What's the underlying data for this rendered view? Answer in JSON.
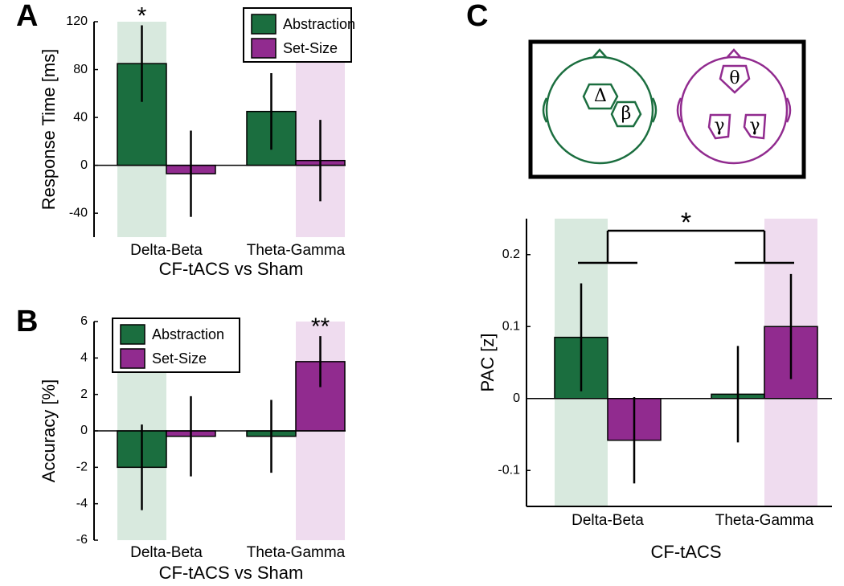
{
  "chart_data": [
    {
      "type": "bar",
      "panel": "A",
      "ylabel": "Response Time [ms]",
      "xlabel": "CF-tACS vs Sham",
      "categories": [
        "Delta-Beta",
        "Theta-Gamma"
      ],
      "series": [
        {
          "name": "Abstraction",
          "color": "#1b6e3f",
          "values": [
            85,
            45
          ],
          "errors": [
            32,
            32
          ]
        },
        {
          "name": "Set-Size",
          "color": "#912b8f",
          "values": [
            -7,
            4
          ],
          "errors": [
            36,
            34
          ]
        }
      ],
      "ylim": [
        -60,
        120
      ],
      "yticks": [
        -40,
        0,
        40,
        80,
        120
      ],
      "legend": "upper right",
      "bands": [
        {
          "series": 0,
          "category": 0,
          "color": "#d8e9de"
        },
        {
          "series": 1,
          "category": 1,
          "color": "#efdcef"
        }
      ],
      "annotations": [
        {
          "text": "*",
          "series": 0,
          "category": 0
        }
      ]
    },
    {
      "type": "bar",
      "panel": "B",
      "ylabel": "Accuracy [%]",
      "xlabel": "CF-tACS vs Sham",
      "categories": [
        "Delta-Beta",
        "Theta-Gamma"
      ],
      "series": [
        {
          "name": "Abstraction",
          "color": "#1b6e3f",
          "values": [
            -2.0,
            -0.3
          ],
          "errors": [
            2.35,
            2.0
          ]
        },
        {
          "name": "Set-Size",
          "color": "#912b8f",
          "values": [
            -0.3,
            3.8
          ],
          "errors": [
            2.2,
            1.4
          ]
        }
      ],
      "ylim": [
        -6,
        6
      ],
      "yticks": [
        -6,
        -4,
        -2,
        0,
        2,
        4,
        6
      ],
      "legend": "upper left",
      "bands": [
        {
          "series": 0,
          "category": 0,
          "color": "#d8e9de"
        },
        {
          "series": 1,
          "category": 1,
          "color": "#efdcef"
        }
      ],
      "annotations": [
        {
          "text": "**",
          "series": 1,
          "category": 1
        }
      ]
    },
    {
      "type": "bar",
      "panel": "C",
      "ylabel": "PAC [z]",
      "xlabel": "CF-tACS",
      "categories": [
        "Delta-Beta",
        "Theta-Gamma"
      ],
      "series": [
        {
          "color": "#1b6e3f",
          "values": [
            0.085,
            0.006
          ],
          "errors": [
            0.075,
            0.067
          ]
        },
        {
          "color": "#912b8f",
          "values": [
            -0.058,
            0.1
          ],
          "errors": [
            0.06,
            0.073
          ]
        }
      ],
      "ylim": [
        -0.15,
        0.25
      ],
      "yticks": [
        -0.1,
        0,
        0.1,
        0.2
      ],
      "bands": [
        {
          "series": 0,
          "category": 0,
          "color": "#d8e9de"
        },
        {
          "series": 1,
          "category": 1,
          "color": "#efdcef"
        }
      ],
      "bracket": {
        "text": "*"
      }
    }
  ],
  "diagram": {
    "green_labels": [
      "Δ",
      "β"
    ],
    "purple_labels": [
      "θ",
      "γ",
      "γ"
    ]
  }
}
